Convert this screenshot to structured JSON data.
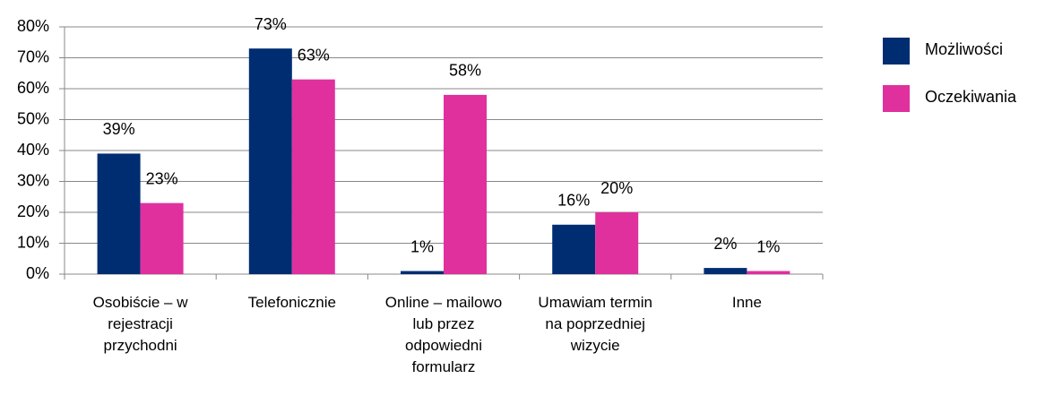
{
  "chart_data": {
    "type": "bar",
    "categories": [
      "Osobiście – w rejestracji przychodni",
      "Telefonicznie",
      "Online – mailowo lub przez odpowiedni formularz",
      "Umawiam termin na poprzedniej wizycie",
      "Inne"
    ],
    "series": [
      {
        "name": "Możliwości",
        "color": "#002d72",
        "values": [
          39,
          73,
          1,
          16,
          2
        ],
        "value_labels": [
          "39%",
          "73%",
          "1%",
          "16%",
          "2%"
        ]
      },
      {
        "name": "Oczekiwania",
        "color": "#e0309e",
        "values": [
          23,
          63,
          58,
          20,
          1
        ],
        "value_labels": [
          "23%",
          "63%",
          "58%",
          "20%",
          "1%"
        ]
      }
    ],
    "ylim": [
      0,
      80
    ],
    "yticks": [
      {
        "value": 0,
        "label": "0%"
      },
      {
        "value": 10,
        "label": "10%"
      },
      {
        "value": 20,
        "label": "20%"
      },
      {
        "value": 30,
        "label": "30%"
      },
      {
        "value": 40,
        "label": "40%"
      },
      {
        "value": 50,
        "label": "50%"
      },
      {
        "value": 60,
        "label": "60%"
      },
      {
        "value": 70,
        "label": "70%"
      },
      {
        "value": 80,
        "label": "80%"
      }
    ],
    "grid": true,
    "legend": "right"
  }
}
